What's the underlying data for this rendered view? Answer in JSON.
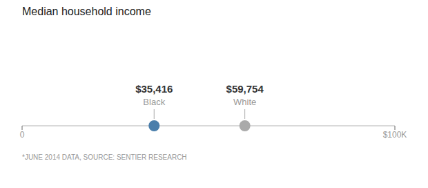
{
  "chart_data": {
    "type": "dot",
    "title": "Median household income",
    "series": [
      {
        "name": "Black",
        "color": "#4a7eab",
        "values": [
          35416
        ],
        "value_labels": [
          "$35,416"
        ]
      },
      {
        "name": "White",
        "color": "#aaaaaa",
        "values": [
          59754
        ],
        "value_labels": [
          "$59,754"
        ]
      }
    ],
    "xlim": [
      0,
      100000
    ],
    "xticks": [
      0,
      {
        "value": 100000,
        "label": "$100K"
      }
    ],
    "data_labels": true,
    "annotations": [
      "*JUNE 2014 DATA, SOURCE: SENTIER RESEARCH"
    ]
  }
}
